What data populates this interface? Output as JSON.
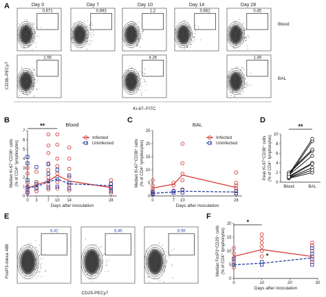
{
  "panel_labels": [
    "A",
    "B",
    "C",
    "D",
    "E",
    "F"
  ],
  "panel_a": {
    "columns": [
      "Day 0",
      "Day 7",
      "Day 10",
      "Day 14",
      "Day 28"
    ],
    "row_labels": [
      "Blood",
      "BAL"
    ],
    "blood_gates": [
      "0.671",
      "0.893",
      "1.2",
      "0.662",
      "0.45"
    ],
    "bal_gates": [
      "1.55",
      "",
      "4.26",
      "",
      "1.39"
    ],
    "ylabel": "CD38–PECy7",
    "xlabel": "Ki-67–FITC"
  },
  "panel_e": {
    "gates": [
      "8.42",
      "8.46",
      "8.98"
    ],
    "ylabel": "FoxP3-Alexa 488",
    "xlabel": "CD25-PECy7"
  },
  "chart_data": [
    {
      "panel": "B",
      "type": "scatter",
      "title": "Blood",
      "xlabel": "Days after inoculation",
      "ylabel": "Median Ki-67⁺CD38⁺ cells (% of CD4⁺ lymphocytes)",
      "ylim": [
        0,
        7
      ],
      "yticks": [
        0,
        1,
        2,
        3,
        4,
        5,
        6,
        7
      ],
      "xticks": [
        0,
        3,
        7,
        10,
        14,
        28
      ],
      "xlim": [
        0,
        30
      ],
      "legend": [
        "Infected",
        "Uninfected"
      ],
      "legend_position": "top-right",
      "significance": "**",
      "series": [
        {
          "name": "Infected",
          "color": "#d63a3a",
          "line": "solid",
          "line_x": [
            0,
            3,
            7,
            10,
            14,
            28
          ],
          "line_y": [
            0.8,
            1.2,
            1.6,
            2.2,
            1.6,
            0.9
          ],
          "points": [
            [
              0,
              0.3
            ],
            [
              0,
              0.6
            ],
            [
              0,
              1.0
            ],
            [
              0,
              1.4
            ],
            [
              0,
              2.4
            ],
            [
              0,
              3.0
            ],
            [
              3,
              0.5
            ],
            [
              3,
              0.9
            ],
            [
              3,
              1.5
            ],
            [
              3,
              2.6
            ],
            [
              7,
              0.7
            ],
            [
              7,
              1.2
            ],
            [
              7,
              2.0
            ],
            [
              7,
              2.8
            ],
            [
              7,
              3.5
            ],
            [
              7,
              4.6
            ],
            [
              7,
              5.4
            ],
            [
              7,
              6.6
            ],
            [
              10,
              0.8
            ],
            [
              10,
              1.5
            ],
            [
              10,
              2.4
            ],
            [
              10,
              3.2
            ],
            [
              10,
              4.0
            ],
            [
              10,
              5.5
            ],
            [
              10,
              6.6
            ],
            [
              14,
              0.6
            ],
            [
              14,
              1.2
            ],
            [
              14,
              2.0
            ],
            [
              14,
              2.9
            ],
            [
              14,
              4.0
            ],
            [
              14,
              5.2
            ],
            [
              28,
              0.3
            ],
            [
              28,
              0.7
            ],
            [
              28,
              1.0
            ],
            [
              28,
              1.3
            ],
            [
              28,
              1.7
            ]
          ]
        },
        {
          "name": "Uninfected",
          "color": "#2a3fa0",
          "line": "dashed",
          "line_x": [
            0,
            3,
            7,
            10,
            14,
            28
          ],
          "line_y": [
            0.9,
            1.0,
            1.5,
            1.8,
            1.3,
            1.1
          ],
          "points": [
            [
              0,
              0.4
            ],
            [
              0,
              0.9
            ],
            [
              0,
              1.7
            ],
            [
              0,
              3.5
            ],
            [
              0,
              4.2
            ],
            [
              3,
              0.8
            ],
            [
              3,
              1.3
            ],
            [
              3,
              3.1
            ],
            [
              7,
              0.9
            ],
            [
              7,
              1.6
            ],
            [
              7,
              2.4
            ],
            [
              7,
              3.4
            ],
            [
              10,
              1.0
            ],
            [
              10,
              1.8
            ],
            [
              10,
              2.8
            ],
            [
              14,
              0.8
            ],
            [
              14,
              1.4
            ],
            [
              14,
              2.2
            ],
            [
              28,
              0.5
            ],
            [
              28,
              0.9
            ],
            [
              28,
              1.3
            ]
          ]
        }
      ]
    },
    {
      "panel": "C",
      "type": "scatter",
      "title": "BAL",
      "xlabel": "Days after inoculation",
      "ylabel": "Median Ki-67⁺CD38⁺ cells (% of CD4⁺ lymphocytes)",
      "ylim": [
        0,
        25
      ],
      "yticks": [
        0,
        5,
        10,
        15,
        20,
        25
      ],
      "xticks": [
        0,
        7,
        10,
        28
      ],
      "xlim": [
        0,
        30
      ],
      "legend": [
        "Infected",
        "Uninfected"
      ],
      "legend_position": "top-right",
      "series": [
        {
          "name": "Infected",
          "color": "#d63a3a",
          "line": "solid",
          "line_x": [
            0,
            7,
            10,
            28
          ],
          "line_y": [
            3.0,
            4.5,
            8.0,
            3.2
          ],
          "points": [
            [
              0,
              0.8
            ],
            [
              0,
              1.8
            ],
            [
              0,
              2.8
            ],
            [
              0,
              4.0
            ],
            [
              0,
              6.0
            ],
            [
              7,
              2.0
            ],
            [
              7,
              4.0
            ],
            [
              7,
              5.0
            ],
            [
              10,
              2.5
            ],
            [
              10,
              6.0
            ],
            [
              10,
              8.5
            ],
            [
              10,
              12.5
            ],
            [
              10,
              20.0
            ],
            [
              28,
              1.0
            ],
            [
              28,
              2.0
            ],
            [
              28,
              3.0
            ],
            [
              28,
              4.0
            ],
            [
              28,
              5.0
            ],
            [
              28,
              9.0
            ]
          ]
        },
        {
          "name": "Uninfected",
          "color": "#2a3fa0",
          "line": "dashed",
          "line_x": [
            0,
            7,
            10,
            28
          ],
          "line_y": [
            1.0,
            1.5,
            1.8,
            1.5
          ],
          "points": [
            [
              0,
              0.5
            ],
            [
              0,
              1.0
            ],
            [
              0,
              1.5
            ],
            [
              7,
              1.2
            ],
            [
              7,
              1.8
            ],
            [
              10,
              1.3
            ],
            [
              10,
              2.2
            ],
            [
              28,
              1.0
            ],
            [
              28,
              1.8
            ]
          ]
        }
      ]
    },
    {
      "panel": "D",
      "type": "scatter",
      "ylabel": "Peak Ki-67⁺CD38⁺ cells (% of CD4⁺ lymphocytes)",
      "categories": [
        "Blood",
        "BAL"
      ],
      "ylim": [
        0,
        10
      ],
      "yticks": [
        0,
        2,
        4,
        6,
        8,
        10
      ],
      "significance": "**",
      "pairs": [
        [
          0.8,
          2.0
        ],
        [
          1.0,
          3.0
        ],
        [
          1.2,
          4.0
        ],
        [
          1.5,
          5.5
        ],
        [
          1.8,
          6.5
        ],
        [
          2.0,
          6.8
        ],
        [
          1.3,
          8.5
        ],
        [
          1.6,
          9.0
        ],
        [
          0.9,
          2.5
        ],
        [
          1.1,
          3.8
        ]
      ]
    },
    {
      "panel": "F",
      "type": "scatter",
      "xlabel": "Days after inoculation",
      "ylabel": "Median FoxP3⁺CD25⁺ cells (% of CD4⁺ lymphocytes)",
      "ylim": [
        0,
        20
      ],
      "yticks": [
        0,
        5,
        10,
        15,
        20
      ],
      "xticks": [
        0,
        10,
        20,
        30
      ],
      "xlim": [
        0,
        30
      ],
      "significance": [
        "*",
        "*"
      ],
      "series": [
        {
          "name": "Infected",
          "color": "#d63a3a",
          "line": "solid",
          "line_x": [
            0,
            10,
            28
          ],
          "line_y": [
            8.0,
            10.5,
            8.0
          ],
          "points": [
            [
              0,
              4.0
            ],
            [
              0,
              6.0
            ],
            [
              0,
              7.5
            ],
            [
              0,
              9.0
            ],
            [
              0,
              11.0
            ],
            [
              10,
              8.0
            ],
            [
              10,
              10.0
            ],
            [
              10,
              11.5
            ],
            [
              10,
              13.0
            ],
            [
              10,
              14.5
            ],
            [
              10,
              16.0
            ],
            [
              28,
              6.0
            ],
            [
              28,
              8.0
            ],
            [
              28,
              10.0
            ],
            [
              28,
              12.0
            ],
            [
              28,
              13.0
            ]
          ]
        },
        {
          "name": "Uninfected",
          "color": "#2a3fa0",
          "line": "dashed",
          "line_x": [
            0,
            10,
            28
          ],
          "line_y": [
            5.0,
            5.5,
            7.5
          ],
          "points": [
            [
              0,
              5.0
            ],
            [
              0,
              7.0
            ],
            [
              10,
              5.0
            ],
            [
              10,
              6.0
            ],
            [
              28,
              5.0
            ],
            [
              28,
              7.0
            ],
            [
              28,
              9.0
            ],
            [
              28,
              11.0
            ]
          ]
        }
      ]
    }
  ]
}
